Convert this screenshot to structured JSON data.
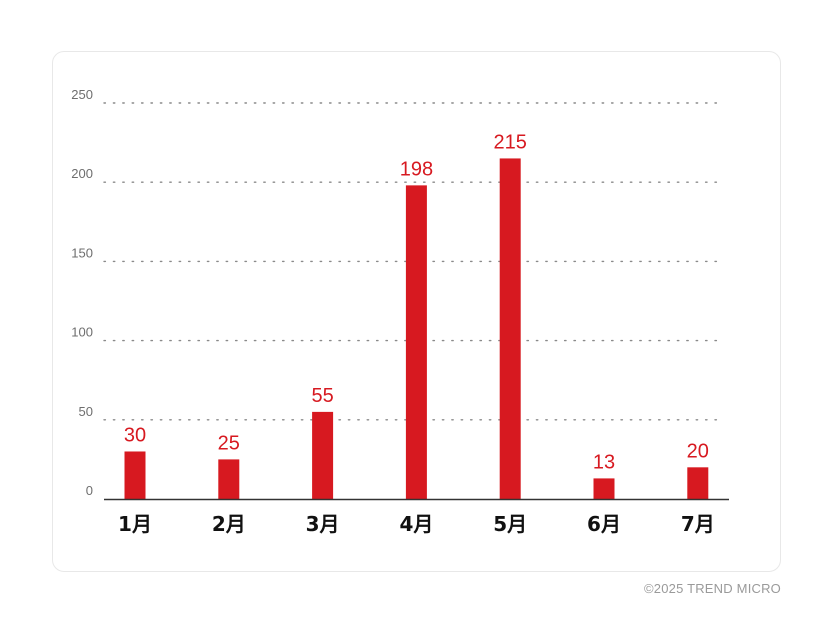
{
  "chart_data": {
    "type": "bar",
    "categories": [
      "1月",
      "2月",
      "3月",
      "4月",
      "5月",
      "6月",
      "7月"
    ],
    "values": [
      30,
      25,
      55,
      198,
      215,
      13,
      20
    ],
    "data_labels": [
      "30",
      "25",
      "55",
      "198",
      "215",
      "13",
      "20"
    ],
    "yticks": [
      0,
      50,
      100,
      150,
      200,
      250
    ],
    "ylim": [
      0,
      250
    ],
    "grid": "horizontal-dotted",
    "bar_color": "#d71920",
    "label_color": "#d71920"
  },
  "footer": {
    "copyright": "©2025 TREND MICRO"
  }
}
